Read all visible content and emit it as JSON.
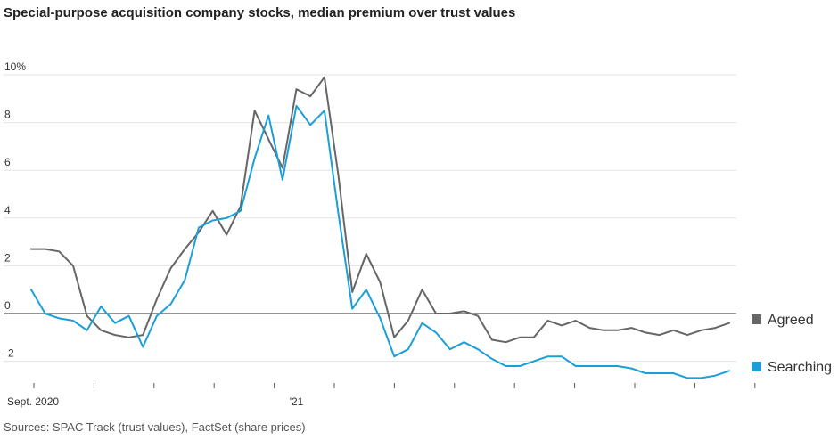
{
  "title": "Special-purpose acquisition company stocks, median premium over trust values",
  "source": "Sources: SPAC Track (trust values), FactSet (share prices)",
  "colors": {
    "agreed": "#666666",
    "searching": "#1a9fd6",
    "grid": "#e3e3e3",
    "zero": "#555555"
  },
  "chart_data": {
    "type": "line",
    "title": "Special-purpose acquisition company stocks, median premium over trust values",
    "ylim": [
      -3,
      10
    ],
    "yticks": [
      10,
      8,
      6,
      4,
      2,
      0,
      -2
    ],
    "ytick_labels": [
      "10%",
      "8",
      "6",
      "4",
      "2",
      "0",
      "-2"
    ],
    "x_labels": [
      {
        "index": 0,
        "label": "Sept. 2020"
      },
      {
        "index": 19,
        "label": "'21"
      }
    ],
    "x_tick_count": 13,
    "grid": true,
    "legend": "right",
    "series": [
      {
        "name": "Agreed",
        "values": [
          2.7,
          2.7,
          2.6,
          2.0,
          -0.1,
          -0.7,
          -0.9,
          -1.0,
          -0.9,
          0.6,
          1.9,
          2.7,
          3.4,
          4.3,
          3.3,
          4.5,
          8.5,
          7.3,
          6.1,
          9.4,
          9.1,
          9.9,
          5.8,
          0.9,
          2.5,
          1.3,
          -1.0,
          -0.3,
          1.0,
          0.0,
          0.0,
          0.1,
          -0.1,
          -1.1,
          -1.2,
          -1.0,
          -1.0,
          -0.3,
          -0.5,
          -0.3,
          -0.6,
          -0.7,
          -0.7,
          -0.6,
          -0.8,
          -0.9,
          -0.7,
          -0.9,
          -0.7,
          -0.6,
          -0.4
        ]
      },
      {
        "name": "Searching",
        "values": [
          1.0,
          0.0,
          -0.2,
          -0.3,
          -0.7,
          0.3,
          -0.4,
          -0.1,
          -1.4,
          -0.1,
          0.4,
          1.4,
          3.6,
          3.9,
          4.0,
          4.3,
          6.5,
          8.3,
          5.6,
          8.7,
          7.9,
          8.5,
          4.2,
          0.2,
          1.0,
          -0.2,
          -1.8,
          -1.5,
          -0.4,
          -0.8,
          -1.5,
          -1.2,
          -1.5,
          -1.9,
          -2.2,
          -2.2,
          -2.0,
          -1.8,
          -1.8,
          -2.2,
          -2.2,
          -2.2,
          -2.2,
          -2.3,
          -2.5,
          -2.5,
          -2.5,
          -2.7,
          -2.7,
          -2.6,
          -2.4
        ]
      }
    ]
  }
}
